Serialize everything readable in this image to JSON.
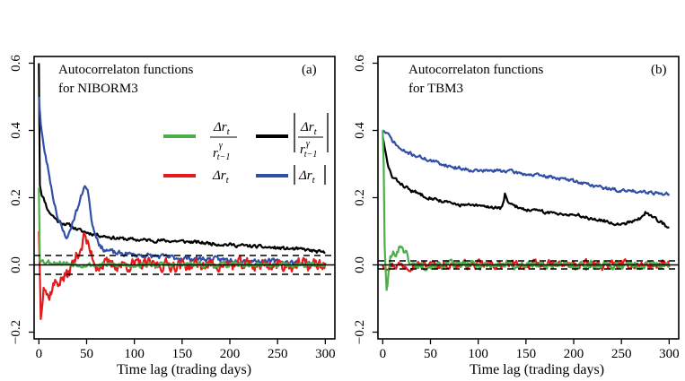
{
  "chart_data": [
    {
      "panel": "(a)",
      "type": "line",
      "title_lines": [
        "Autocorrelaton functions",
        "for NIBORM3"
      ],
      "xlabel": "Time lag (trading days)",
      "ylabel": "",
      "xlim": [
        -5,
        310
      ],
      "ylim": [
        -0.22,
        0.62
      ],
      "xticks": [
        0,
        50,
        100,
        150,
        200,
        250,
        300
      ],
      "xtick_labels": [
        "0",
        "50",
        "100",
        "150",
        "200",
        "250",
        "300"
      ],
      "yticks": [
        -0.2,
        0.0,
        0.2,
        0.4,
        0.6
      ],
      "ytick_labels": [
        "−0.2",
        "0.0",
        "0.2",
        "0.4",
        "0.6"
      ],
      "confidence_band": [
        -0.028,
        0.028
      ],
      "series": [
        {
          "name": "|Δr_t / r_{t-1}^γ|",
          "color": "#000000",
          "anchors": [
            [
              0,
              0.6
            ],
            [
              1,
              0.24
            ],
            [
              3,
              0.21
            ],
            [
              6,
              0.19
            ],
            [
              10,
              0.16
            ],
            [
              20,
              0.13
            ],
            [
              30,
              0.12
            ],
            [
              45,
              0.1
            ],
            [
              60,
              0.09
            ],
            [
              80,
              0.08
            ],
            [
              100,
              0.075
            ],
            [
              150,
              0.07
            ],
            [
              200,
              0.06
            ],
            [
              250,
              0.05
            ],
            [
              280,
              0.045
            ],
            [
              300,
              0.035
            ]
          ],
          "noise": 0.008,
          "seed": 11
        },
        {
          "name": "|Δr_t|",
          "color": "#3050a8",
          "anchors": [
            [
              0,
              0.5
            ],
            [
              2,
              0.42
            ],
            [
              5,
              0.35
            ],
            [
              10,
              0.28
            ],
            [
              15,
              0.2
            ],
            [
              20,
              0.14
            ],
            [
              25,
              0.1
            ],
            [
              30,
              0.08
            ],
            [
              38,
              0.15
            ],
            [
              42,
              0.18
            ],
            [
              46,
              0.22
            ],
            [
              48,
              0.24
            ],
            [
              52,
              0.21
            ],
            [
              56,
              0.12
            ],
            [
              65,
              0.05
            ],
            [
              80,
              0.035
            ],
            [
              100,
              0.03
            ],
            [
              150,
              0.02
            ],
            [
              200,
              0.015
            ],
            [
              250,
              0.01
            ],
            [
              300,
              0.0
            ]
          ],
          "noise": 0.012,
          "seed": 23
        },
        {
          "name": "Δr_t",
          "color": "#e41a1c",
          "anchors": [
            [
              0,
              0.1
            ],
            [
              2,
              -0.15
            ],
            [
              5,
              -0.05
            ],
            [
              10,
              -0.1
            ],
            [
              15,
              -0.06
            ],
            [
              20,
              -0.05
            ],
            [
              30,
              -0.03
            ],
            [
              45,
              0.06
            ],
            [
              48,
              0.09
            ],
            [
              52,
              0.05
            ],
            [
              60,
              0.0
            ],
            [
              100,
              0.0
            ],
            [
              200,
              0.0
            ],
            [
              300,
              0.0
            ]
          ],
          "noise": 0.03,
          "seed": 37
        },
        {
          "name": "Δr_t / r_{t-1}^γ",
          "color": "#4daf4a",
          "anchors": [
            [
              0,
              0.23
            ],
            [
              1,
              0.02
            ],
            [
              5,
              0.01
            ],
            [
              50,
              0.0
            ],
            [
              100,
              0.0
            ],
            [
              200,
              0.0
            ],
            [
              300,
              0.0
            ]
          ],
          "noise": 0.012,
          "seed": 53
        }
      ],
      "legend": {
        "position": "middle-right",
        "entries": [
          {
            "label_num": "Δr",
            "label_num_sub": "t",
            "label_den": "r",
            "label_den_sup": "γ",
            "label_den_sub": "t−1",
            "color": "#4daf4a",
            "abs": false
          },
          {
            "label_num": "Δr",
            "label_num_sub": "t",
            "label_den": "r",
            "label_den_sup": "γ",
            "label_den_sub": "t−1",
            "color": "#000000",
            "abs": true
          },
          {
            "label": "Δr",
            "label_sub": "t",
            "color": "#e41a1c",
            "abs": false
          },
          {
            "label": "Δr",
            "label_sub": "t",
            "color": "#3050a8",
            "abs": true
          }
        ]
      }
    },
    {
      "panel": "(b)",
      "type": "line",
      "title_lines": [
        "Autocorrelaton functions",
        "for TBM3"
      ],
      "xlabel": "Time lag (trading days)",
      "ylabel": "",
      "xlim": [
        -5,
        310
      ],
      "ylim": [
        -0.22,
        0.62
      ],
      "xticks": [
        0,
        50,
        100,
        150,
        200,
        250,
        300
      ],
      "xtick_labels": [
        "0",
        "50",
        "100",
        "150",
        "200",
        "250",
        "300"
      ],
      "yticks": [
        -0.2,
        0.0,
        0.2,
        0.4,
        0.6
      ],
      "ytick_labels": [
        "−0.2",
        "0.0",
        "0.2",
        "0.4",
        "0.6"
      ],
      "confidence_band": [
        -0.012,
        0.012
      ],
      "series": [
        {
          "name": "|Δr_t|",
          "color": "#3050a8",
          "anchors": [
            [
              0,
              0.4
            ],
            [
              5,
              0.39
            ],
            [
              10,
              0.37
            ],
            [
              20,
              0.34
            ],
            [
              30,
              0.33
            ],
            [
              50,
              0.31
            ],
            [
              75,
              0.29
            ],
            [
              100,
              0.28
            ],
            [
              130,
              0.28
            ],
            [
              150,
              0.27
            ],
            [
              180,
              0.26
            ],
            [
              200,
              0.25
            ],
            [
              230,
              0.23
            ],
            [
              250,
              0.22
            ],
            [
              270,
              0.22
            ],
            [
              300,
              0.21
            ]
          ],
          "noise": 0.008,
          "seed": 71
        },
        {
          "name": "|Δr_t / r_{t-1}^γ|",
          "color": "#000000",
          "anchors": [
            [
              0,
              0.38
            ],
            [
              5,
              0.3
            ],
            [
              10,
              0.26
            ],
            [
              20,
              0.24
            ],
            [
              30,
              0.22
            ],
            [
              50,
              0.2
            ],
            [
              75,
              0.18
            ],
            [
              100,
              0.175
            ],
            [
              125,
              0.17
            ],
            [
              128,
              0.21
            ],
            [
              132,
              0.18
            ],
            [
              150,
              0.165
            ],
            [
              175,
              0.155
            ],
            [
              200,
              0.15
            ],
            [
              225,
              0.135
            ],
            [
              250,
              0.12
            ],
            [
              270,
              0.14
            ],
            [
              275,
              0.155
            ],
            [
              285,
              0.14
            ],
            [
              300,
              0.11
            ]
          ],
          "noise": 0.008,
          "seed": 83
        },
        {
          "name": "Δr_t",
          "color": "#e41a1c",
          "anchors": [
            [
              0,
              0.0
            ],
            [
              100,
              0.0
            ],
            [
              200,
              0.0
            ],
            [
              300,
              0.0
            ]
          ],
          "noise": 0.02,
          "seed": 97
        },
        {
          "name": "Δr_t / r_{t-1}^γ",
          "color": "#4daf4a",
          "anchors": [
            [
              0,
              0.4
            ],
            [
              1,
              0.3
            ],
            [
              2,
              0.05
            ],
            [
              4,
              -0.08
            ],
            [
              8,
              0.02
            ],
            [
              20,
              0.06
            ],
            [
              30,
              0.0
            ],
            [
              300,
              0.0
            ]
          ],
          "noise": 0.02,
          "seed": 101
        }
      ]
    }
  ]
}
